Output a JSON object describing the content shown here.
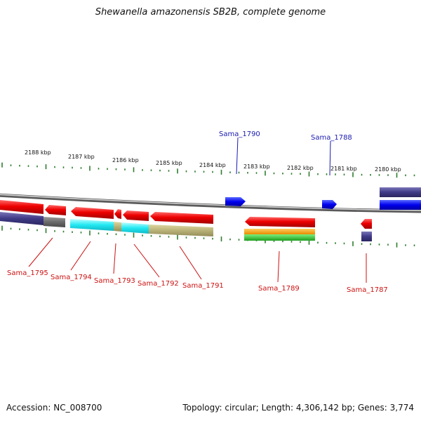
{
  "title": "Shewanella amazonensis SB2B, complete genome",
  "footer": {
    "accession": "Accession: NC_008700",
    "topology": "Topology: circular; Length: 4,306,142 bp; Genes: 3,774"
  },
  "scale_labels": [
    "2188 kbp",
    "2187 kbp",
    "2186 kbp",
    "2185 kbp",
    "2184 kbp",
    "2183 kbp",
    "2182 kbp",
    "2181 kbp",
    "2180 kbp"
  ],
  "genes_top": [
    "Sama_1790",
    "Sama_1788"
  ],
  "genes_bottom": [
    "Sama_1795",
    "Sama_1794",
    "Sama_1793",
    "Sama_1792",
    "Sama_1791",
    "Sama_1789",
    "Sama_1787"
  ],
  "colors": {
    "forward_label": "#1a1ab0",
    "reverse_label": "#cc1111",
    "tick": "#2e7d2e",
    "backbone": "#8c8c8c"
  }
}
